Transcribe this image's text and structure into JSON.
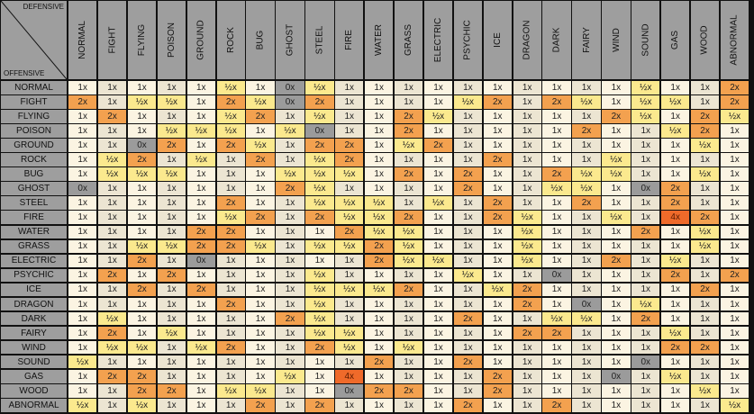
{
  "corner": {
    "defensive_label": "DEFENSIVE",
    "offensive_label": "OFFENSIVE"
  },
  "chart_data": {
    "type": "table",
    "title": "",
    "defensive_types": [
      "NORMAL",
      "FIGHT",
      "FLYING",
      "POISON",
      "GROUND",
      "ROCK",
      "BUG",
      "GHOST",
      "STEEL",
      "FIRE",
      "WATER",
      "GRASS",
      "ELECTRIC",
      "PSYCHIC",
      "ICE",
      "DRAGON",
      "DARK",
      "FAIRY",
      "WIND",
      "SOUND",
      "GAS",
      "WOOD",
      "ABNORMAL"
    ],
    "offensive_types": [
      "NORMAL",
      "FIGHT",
      "FLYING",
      "POISON",
      "GROUND",
      "ROCK",
      "BUG",
      "GHOST",
      "STEEL",
      "FIRE",
      "WATER",
      "GRASS",
      "ELECTRIC",
      "PSYCHIC",
      "ICE",
      "DRAGON",
      "DARK",
      "FAIRY",
      "WIND",
      "SOUND",
      "GAS",
      "WOOD",
      "ABNORMAL"
    ],
    "multipliers": [
      [
        "1x",
        "1x",
        "1x",
        "1x",
        "1x",
        "½x",
        "1x",
        "0x",
        "½x",
        "1x",
        "1x",
        "1x",
        "1x",
        "1x",
        "1x",
        "1x",
        "1x",
        "1x",
        "1x",
        "½x",
        "1x",
        "1x",
        "2x"
      ],
      [
        "2x",
        "1x",
        "½x",
        "½x",
        "1x",
        "2x",
        "½x",
        "0x",
        "2x",
        "1x",
        "1x",
        "1x",
        "1x",
        "½x",
        "2x",
        "1x",
        "2x",
        "½x",
        "1x",
        "½x",
        "½x",
        "1x",
        "2x"
      ],
      [
        "1x",
        "2x",
        "1x",
        "1x",
        "1x",
        "½x",
        "2x",
        "1x",
        "½x",
        "1x",
        "1x",
        "2x",
        "½x",
        "1x",
        "1x",
        "1x",
        "1x",
        "1x",
        "2x",
        "½x",
        "1x",
        "2x",
        "½x"
      ],
      [
        "1x",
        "1x",
        "1x",
        "½x",
        "½x",
        "½x",
        "1x",
        "½x",
        "0x",
        "1x",
        "1x",
        "2x",
        "1x",
        "1x",
        "1x",
        "1x",
        "1x",
        "2x",
        "1x",
        "1x",
        "½x",
        "2x",
        "1x"
      ],
      [
        "1x",
        "1x",
        "0x",
        "2x",
        "1x",
        "2x",
        "½x",
        "1x",
        "2x",
        "2x",
        "1x",
        "½x",
        "2x",
        "1x",
        "1x",
        "1x",
        "1x",
        "1x",
        "1x",
        "1x",
        "1x",
        "½x",
        "1x"
      ],
      [
        "1x",
        "½x",
        "2x",
        "1x",
        "½x",
        "1x",
        "2x",
        "1x",
        "½x",
        "2x",
        "1x",
        "1x",
        "1x",
        "1x",
        "2x",
        "1x",
        "1x",
        "1x",
        "½x",
        "1x",
        "1x",
        "1x",
        "1x"
      ],
      [
        "1x",
        "½x",
        "½x",
        "½x",
        "1x",
        "1x",
        "1x",
        "½x",
        "½x",
        "½x",
        "1x",
        "2x",
        "1x",
        "2x",
        "1x",
        "1x",
        "2x",
        "½x",
        "½x",
        "1x",
        "1x",
        "½x",
        "1x"
      ],
      [
        "0x",
        "1x",
        "1x",
        "1x",
        "1x",
        "1x",
        "1x",
        "2x",
        "½x",
        "1x",
        "1x",
        "1x",
        "1x",
        "2x",
        "1x",
        "1x",
        "½x",
        "½x",
        "1x",
        "0x",
        "2x",
        "1x",
        "1x"
      ],
      [
        "1x",
        "1x",
        "1x",
        "1x",
        "1x",
        "2x",
        "1x",
        "1x",
        "½x",
        "½x",
        "½x",
        "1x",
        "½x",
        "1x",
        "2x",
        "1x",
        "1x",
        "2x",
        "1x",
        "1x",
        "2x",
        "1x",
        "1x"
      ],
      [
        "1x",
        "1x",
        "1x",
        "1x",
        "1x",
        "½x",
        "2x",
        "1x",
        "2x",
        "½x",
        "½x",
        "2x",
        "1x",
        "1x",
        "2x",
        "½x",
        "1x",
        "1x",
        "½x",
        "1x",
        "4x",
        "2x",
        "1x"
      ],
      [
        "1x",
        "1x",
        "1x",
        "1x",
        "2x",
        "2x",
        "1x",
        "1x",
        "1x",
        "2x",
        "½x",
        "½x",
        "1x",
        "1x",
        "1x",
        "½x",
        "1x",
        "1x",
        "1x",
        "2x",
        "1x",
        "½x",
        "1x"
      ],
      [
        "1x",
        "1x",
        "½x",
        "½x",
        "2x",
        "2x",
        "½x",
        "1x",
        "½x",
        "½x",
        "2x",
        "½x",
        "1x",
        "1x",
        "1x",
        "½x",
        "1x",
        "1x",
        "1x",
        "1x",
        "1x",
        "½x",
        "1x"
      ],
      [
        "1x",
        "1x",
        "2x",
        "1x",
        "0x",
        "1x",
        "1x",
        "1x",
        "1x",
        "1x",
        "2x",
        "½x",
        "½x",
        "1x",
        "1x",
        "½x",
        "1x",
        "1x",
        "2x",
        "1x",
        "½x",
        "1x",
        "1x"
      ],
      [
        "1x",
        "2x",
        "1x",
        "2x",
        "1x",
        "1x",
        "1x",
        "1x",
        "½x",
        "1x",
        "1x",
        "1x",
        "1x",
        "½x",
        "1x",
        "1x",
        "0x",
        "1x",
        "1x",
        "1x",
        "2x",
        "1x",
        "2x"
      ],
      [
        "1x",
        "1x",
        "2x",
        "1x",
        "2x",
        "1x",
        "1x",
        "1x",
        "½x",
        "½x",
        "½x",
        "2x",
        "1x",
        "1x",
        "½x",
        "2x",
        "1x",
        "1x",
        "1x",
        "1x",
        "1x",
        "2x",
        "1x"
      ],
      [
        "1x",
        "1x",
        "1x",
        "1x",
        "1x",
        "2x",
        "1x",
        "1x",
        "½x",
        "1x",
        "1x",
        "1x",
        "1x",
        "1x",
        "1x",
        "2x",
        "1x",
        "0x",
        "1x",
        "½x",
        "1x",
        "1x",
        "1x"
      ],
      [
        "1x",
        "½x",
        "1x",
        "1x",
        "1x",
        "1x",
        "1x",
        "2x",
        "½x",
        "1x",
        "1x",
        "1x",
        "1x",
        "2x",
        "1x",
        "1x",
        "½x",
        "½x",
        "1x",
        "2x",
        "1x",
        "1x",
        "1x"
      ],
      [
        "1x",
        "2x",
        "1x",
        "½x",
        "1x",
        "1x",
        "1x",
        "1x",
        "½x",
        "½x",
        "1x",
        "1x",
        "1x",
        "1x",
        "1x",
        "2x",
        "2x",
        "1x",
        "1x",
        "1x",
        "½x",
        "1x",
        "1x"
      ],
      [
        "1x",
        "½x",
        "½x",
        "1x",
        "½x",
        "2x",
        "1x",
        "1x",
        "2x",
        "½x",
        "1x",
        "½x",
        "1x",
        "1x",
        "1x",
        "1x",
        "1x",
        "1x",
        "1x",
        "1x",
        "2x",
        "2x",
        "1x"
      ],
      [
        "½x",
        "1x",
        "1x",
        "1x",
        "1x",
        "1x",
        "1x",
        "1x",
        "1x",
        "1x",
        "2x",
        "1x",
        "1x",
        "2x",
        "1x",
        "1x",
        "1x",
        "1x",
        "1x",
        "0x",
        "1x",
        "1x",
        "1x"
      ],
      [
        "1x",
        "2x",
        "2x",
        "1x",
        "1x",
        "1x",
        "1x",
        "½x",
        "1x",
        "4x",
        "1x",
        "1x",
        "1x",
        "1x",
        "2x",
        "1x",
        "1x",
        "1x",
        "0x",
        "1x",
        "½x",
        "1x",
        "1x"
      ],
      [
        "1x",
        "1x",
        "2x",
        "2x",
        "1x",
        "½x",
        "½x",
        "1x",
        "1x",
        "0x",
        "2x",
        "2x",
        "1x",
        "1x",
        "2x",
        "1x",
        "1x",
        "1x",
        "1x",
        "1x",
        "1x",
        "½x",
        "1x"
      ],
      [
        "½x",
        "1x",
        "½x",
        "1x",
        "1x",
        "1x",
        "2x",
        "1x",
        "2x",
        "1x",
        "1x",
        "1x",
        "1x",
        "2x",
        "1x",
        "1x",
        "2x",
        "1x",
        "1x",
        "1x",
        "1x",
        "1x",
        "½x"
      ]
    ]
  },
  "colors": {
    "header_bg": "#9e9e9e",
    "grid_line": "#111111",
    "normal_row_light": "#fbf4e2",
    "normal_row_dark": "#ece5d2",
    "half": "#fbe98e",
    "double": "#f3a14f",
    "quadruple": "#ef6a2a",
    "immune": "#9b9b9b"
  }
}
